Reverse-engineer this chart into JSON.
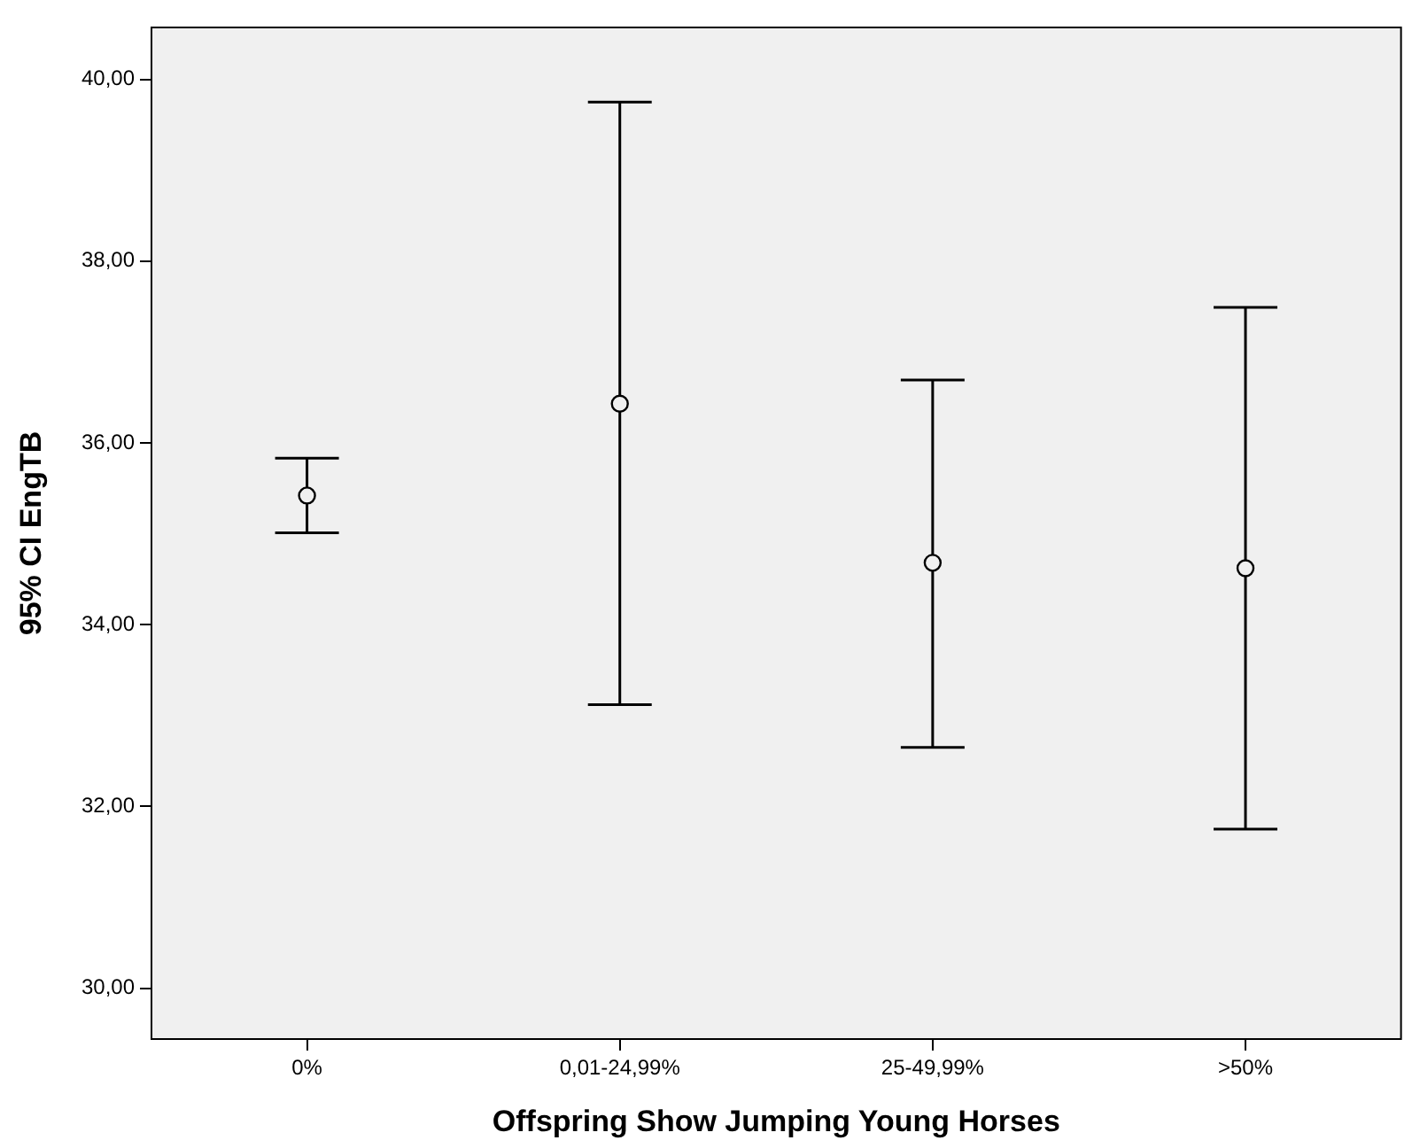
{
  "chart_data": {
    "type": "scatter",
    "xlabel": "Offspring Show Jumping Young Horses",
    "ylabel": "95% CI EngTB",
    "categories": [
      "0%",
      "0,01-24,99%",
      "25-49,99%",
      ">50%"
    ],
    "series": [
      {
        "color": "#000000",
        "values": [
          35.42,
          36.43,
          34.68,
          34.62
        ],
        "errors": [
          [
            35.01,
            35.83
          ],
          [
            33.12,
            39.75
          ],
          [
            32.65,
            36.69
          ],
          [
            31.75,
            37.49
          ]
        ]
      }
    ],
    "marker": "circle",
    "ylim": [
      29.43,
      40.58
    ],
    "yticks": [
      {
        "value": 30,
        "label": "30,00"
      },
      {
        "value": 32,
        "label": "32,00"
      },
      {
        "value": 34,
        "label": "34,00"
      },
      {
        "value": 36,
        "label": "36,00"
      },
      {
        "value": 38,
        "label": "38,00"
      },
      {
        "value": 40,
        "label": "40,00"
      }
    ]
  }
}
